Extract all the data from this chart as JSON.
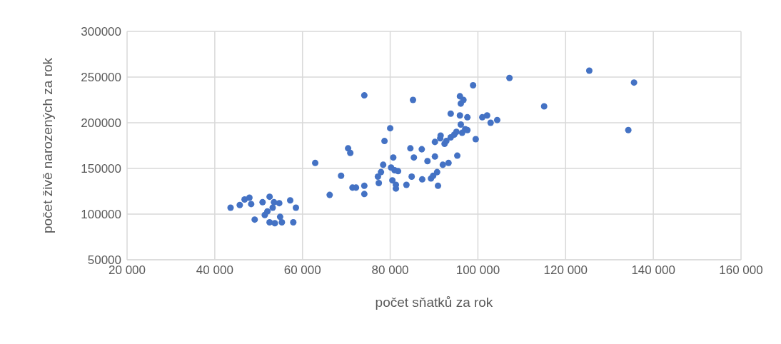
{
  "chart_data": {
    "type": "scatter",
    "xlabel": "počet sňatků za rok",
    "ylabel": "počet živě narozených za rok",
    "xlim": [
      20000,
      160000
    ],
    "xticks": [
      {
        "value": 20000,
        "label": "20 000"
      },
      {
        "value": 40000,
        "label": "40 000"
      },
      {
        "value": 60000,
        "label": "60 000"
      },
      {
        "value": 80000,
        "label": "80 000"
      },
      {
        "value": 100000,
        "label": "100 000"
      },
      {
        "value": 120000,
        "label": "120 000"
      },
      {
        "value": 140000,
        "label": "140 000"
      },
      {
        "value": 160000,
        "label": "160 000"
      }
    ],
    "ylim": [
      50000,
      300000
    ],
    "yticks": [
      50000,
      100000,
      150000,
      200000,
      250000,
      300000
    ],
    "grid": true,
    "legend": false,
    "marker": "circle",
    "series": [
      {
        "color": "#4472c4",
        "x": [
          43600,
          45700,
          46800,
          47900,
          48300,
          49100,
          50900,
          51400,
          52500,
          52000,
          52500,
          53200,
          53500,
          53700,
          54700,
          54900,
          55300,
          57200,
          57900,
          58500,
          62900,
          66200,
          68800,
          70400,
          70900,
          71400,
          72200,
          74100,
          74100,
          74100,
          77200,
          77400,
          77900,
          78400,
          78700,
          80000,
          80200,
          80500,
          80700,
          81000,
          81300,
          81300,
          81800,
          83700,
          84600,
          84900,
          85200,
          85400,
          87200,
          87300,
          88500,
          89300,
          89800,
          90200,
          90200,
          90700,
          90900,
          91400,
          91500,
          92000,
          92400,
          92800,
          93300,
          93800,
          93800,
          94600,
          95100,
          95300,
          95900,
          95900,
          96100,
          96100,
          96400,
          96700,
          97100,
          97600,
          97600,
          98900,
          99500,
          101000,
          102100,
          102900,
          104400,
          107200,
          115100,
          125400,
          134300,
          135600
        ],
        "values": [
          107000,
          110000,
          116000,
          118000,
          111000,
          94000,
          113000,
          99000,
          119000,
          103000,
          91000,
          107000,
          113000,
          90000,
          112000,
          97000,
          91000,
          115000,
          91000,
          107000,
          156000,
          121000,
          142000,
          172000,
          167000,
          129000,
          129000,
          230000,
          131000,
          122000,
          141000,
          134000,
          146000,
          154000,
          180000,
          194000,
          151000,
          137000,
          162000,
          148000,
          132000,
          128000,
          147000,
          132000,
          172000,
          141000,
          225000,
          162000,
          171000,
          138000,
          158000,
          139000,
          142000,
          179000,
          163000,
          146000,
          131000,
          183000,
          186000,
          154000,
          177000,
          180000,
          156000,
          210000,
          184000,
          187000,
          190000,
          164000,
          229000,
          208000,
          198000,
          221000,
          189000,
          225000,
          193000,
          206000,
          192000,
          241000,
          182000,
          206000,
          208000,
          200000,
          203000,
          249000,
          218000,
          257000,
          192000,
          244000
        ]
      }
    ]
  }
}
